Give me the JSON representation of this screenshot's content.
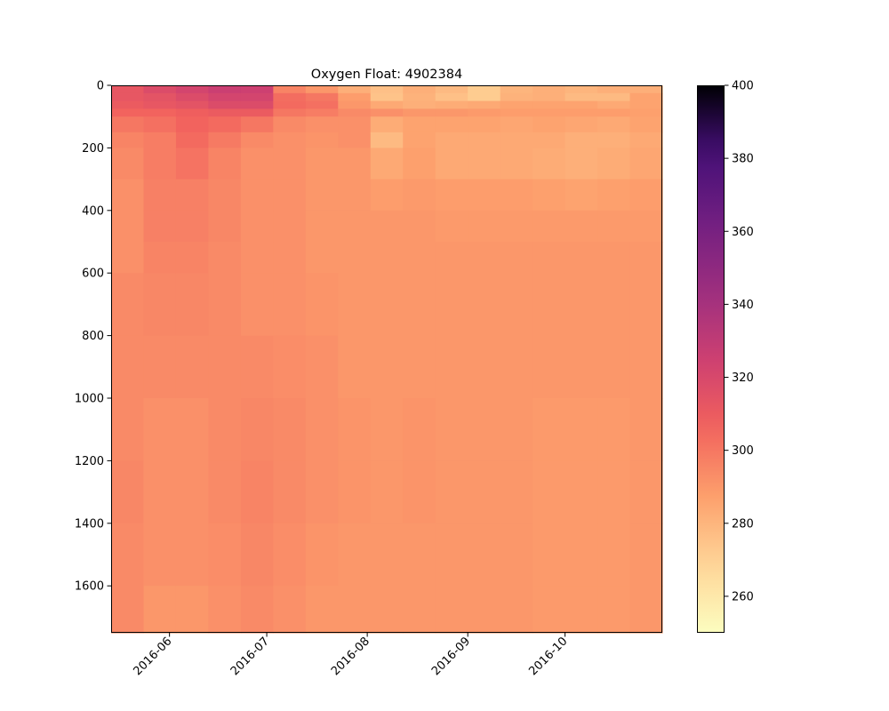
{
  "chart_data": {
    "type": "heatmap",
    "title": "Oxygen Float: 4902384",
    "xlabel": "",
    "ylabel": "",
    "colormap": "magma_r",
    "x_tick_labels": [
      "2016-06",
      "2016-07",
      "2016-08",
      "2016-09",
      "2016-10"
    ],
    "x_tick_dates": [
      "2016-06-01",
      "2016-07-01",
      "2016-08-01",
      "2016-09-01",
      "2016-10-01"
    ],
    "xlim": [
      "2016-05-14",
      "2016-10-31"
    ],
    "y_ticks": [
      0,
      200,
      400,
      600,
      800,
      1000,
      1200,
      1400,
      1600
    ],
    "ylim": [
      1750,
      0
    ],
    "y_inverted": true,
    "colorbar": {
      "range": [
        250,
        400
      ],
      "ticks": [
        260,
        280,
        300,
        320,
        340,
        360,
        380,
        400
      ]
    },
    "profile_dates": [
      "2016-05-14",
      "2016-05-24",
      "2016-06-03",
      "2016-06-13",
      "2016-06-23",
      "2016-07-03",
      "2016-07-13",
      "2016-07-23",
      "2016-08-02",
      "2016-08-12",
      "2016-08-22",
      "2016-09-01",
      "2016-09-11",
      "2016-09-21",
      "2016-10-01",
      "2016-10-11",
      "2016-10-21",
      "2016-10-31"
    ],
    "depth_bins": [
      0,
      25,
      50,
      75,
      100,
      150,
      200,
      300,
      400,
      500,
      600,
      800,
      1000,
      1200,
      1400,
      1600,
      1750
    ],
    "values": [
      [
        312,
        318,
        322,
        326,
        325,
        296,
        290,
        282,
        276,
        282,
        278,
        272,
        280,
        282,
        280,
        282,
        282
      ],
      [
        312,
        314,
        318,
        322,
        322,
        303,
        300,
        288,
        275,
        281,
        276,
        272,
        281,
        282,
        278,
        278,
        286
      ],
      [
        310,
        312,
        314,
        318,
        318,
        304,
        302,
        290,
        284,
        282,
        283,
        284,
        286,
        286,
        286,
        284,
        286
      ],
      [
        306,
        306,
        308,
        310,
        310,
        300,
        298,
        294,
        292,
        290,
        290,
        289,
        288,
        288,
        288,
        288,
        287
      ],
      [
        300,
        302,
        306,
        304,
        300,
        294,
        292,
        292,
        283,
        286,
        286,
        286,
        285,
        286,
        285,
        284,
        286
      ],
      [
        296,
        298,
        304,
        299,
        294,
        292,
        291,
        292,
        278,
        286,
        284,
        284,
        284,
        284,
        282,
        282,
        284
      ],
      [
        294,
        298,
        301,
        296,
        292,
        292,
        290,
        290,
        284,
        287,
        284,
        284,
        284,
        283,
        282,
        283,
        285
      ],
      [
        292,
        297,
        297,
        295,
        292,
        292,
        290,
        290,
        288,
        289,
        288,
        288,
        288,
        287,
        286,
        287,
        288
      ],
      [
        292,
        297,
        297,
        295,
        292,
        292,
        290,
        290,
        290,
        290,
        289,
        289,
        289,
        289,
        289,
        289,
        289
      ],
      [
        292,
        296,
        296,
        294,
        292,
        292,
        290,
        290,
        290,
        290,
        290,
        290,
        290,
        290,
        290,
        290,
        290
      ],
      [
        294,
        295,
        295,
        294,
        292,
        292,
        291,
        290,
        290,
        290,
        290,
        290,
        290,
        290,
        290,
        290,
        290
      ],
      [
        294,
        294,
        294,
        294,
        294,
        293,
        292,
        290,
        290,
        290,
        290,
        290,
        290,
        290,
        290,
        290,
        290
      ],
      [
        294,
        292,
        292,
        294,
        295,
        294,
        292,
        291,
        290,
        291,
        290,
        290,
        290,
        289,
        289,
        289,
        290
      ],
      [
        295,
        292,
        292,
        294,
        296,
        294,
        292,
        291,
        290,
        291,
        290,
        290,
        290,
        289,
        289,
        289,
        290
      ],
      [
        294,
        292,
        292,
        293,
        295,
        293,
        291,
        290,
        290,
        290,
        290,
        290,
        290,
        289,
        289,
        289,
        290
      ],
      [
        294,
        290,
        290,
        292,
        294,
        292,
        290,
        290,
        290,
        290,
        290,
        290,
        290,
        289,
        289,
        289,
        290
      ],
      [
        292,
        290,
        289,
        292,
        293,
        290,
        290,
        288,
        284,
        290,
        288,
        288,
        282,
        288,
        284,
        288,
        289
      ]
    ]
  }
}
